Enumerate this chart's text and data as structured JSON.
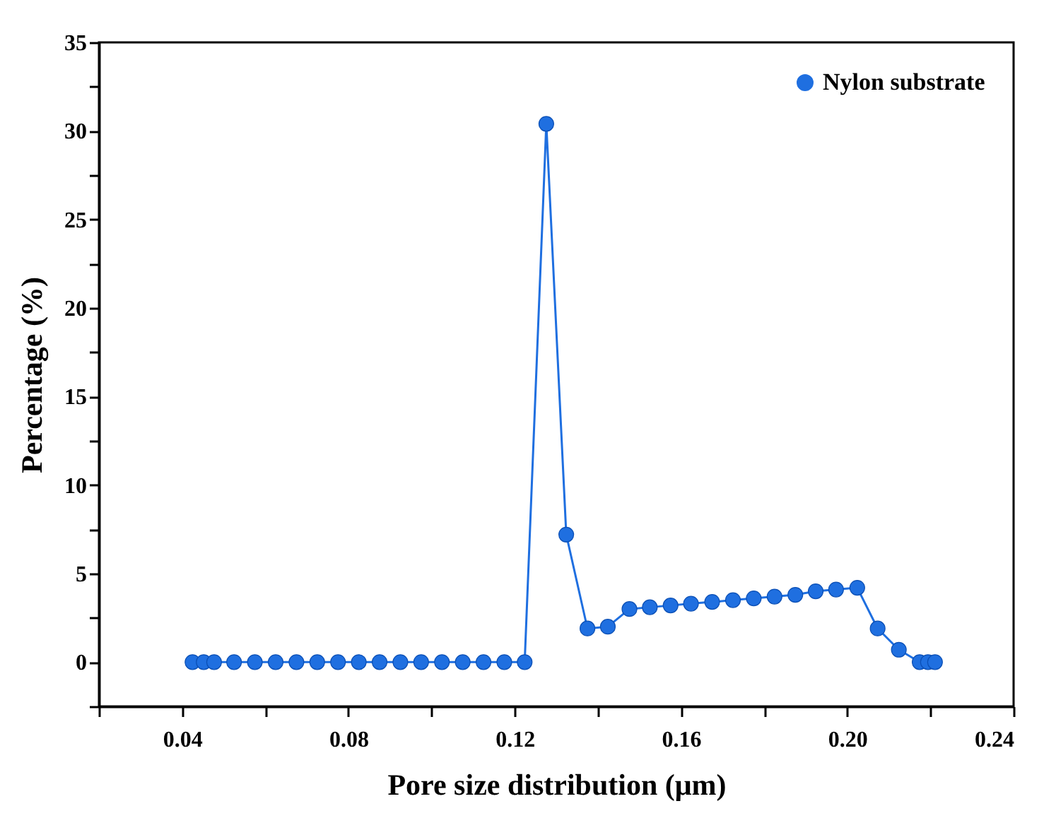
{
  "chart_data": {
    "type": "line",
    "xlabel": "Pore size distribution (μm)",
    "ylabel": "Percentage (%)",
    "x": [
      0.0425,
      0.0452,
      0.0477,
      0.0525,
      0.0575,
      0.0625,
      0.0675,
      0.0725,
      0.0775,
      0.0825,
      0.0875,
      0.0925,
      0.0975,
      0.1025,
      0.1075,
      0.1125,
      0.1175,
      0.1224,
      0.1276,
      0.1324,
      0.1375,
      0.1424,
      0.1476,
      0.1525,
      0.1575,
      0.1624,
      0.1675,
      0.1725,
      0.1775,
      0.1825,
      0.1875,
      0.1924,
      0.1973,
      0.2024,
      0.2073,
      0.2124,
      0.2174,
      0.2194,
      0.2211
    ],
    "series": [
      {
        "name": "Nylon substrate",
        "color": "#1f6fe0",
        "values": [
          0,
          0,
          0,
          0,
          0,
          0,
          0,
          0,
          0,
          0,
          0,
          0,
          0,
          0,
          0,
          0,
          0,
          0,
          30.4,
          7.2,
          1.9,
          2.0,
          3.0,
          3.1,
          3.2,
          3.3,
          3.4,
          3.5,
          3.6,
          3.7,
          3.8,
          4.0,
          4.1,
          4.2,
          1.9,
          0.7,
          0,
          0,
          0
        ]
      }
    ],
    "xlim": [
      0.02,
      0.24
    ],
    "xticks": [
      {
        "value": 0.02,
        "label": null
      },
      "0.04",
      {
        "value": 0.06,
        "label": null
      },
      0.08,
      {
        "value": 0.1,
        "label": null
      },
      0.12,
      {
        "value": 0.14,
        "label": null
      },
      0.16,
      {
        "value": 0.18,
        "label": null
      },
      "0.20",
      {
        "value": 0.22,
        "label": null
      },
      0.24
    ],
    "ylim": [
      -2.5,
      35
    ],
    "yticks": [
      {
        "value": -2.5,
        "label": null
      },
      0,
      {
        "value": 2.5,
        "label": null
      },
      5,
      {
        "value": 7.5,
        "label": null
      },
      10,
      {
        "value": 12.5,
        "label": null
      },
      15,
      {
        "value": 17.5,
        "label": null
      },
      20,
      {
        "value": 22.5,
        "label": null
      },
      25,
      {
        "value": 27.5,
        "label": null
      },
      30,
      {
        "value": 32.5,
        "label": null
      },
      35
    ],
    "marker": "circle",
    "legend": "top right",
    "grid": false
  }
}
